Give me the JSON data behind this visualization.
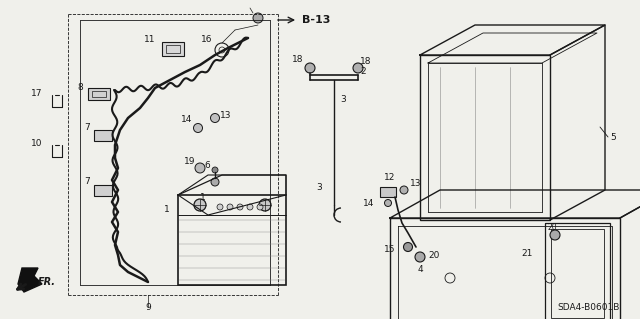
{
  "bg_color": "#f0f0eb",
  "line_color": "#1a1a1a",
  "title_text": "SDA4-B0601B",
  "b13_label": "B-13",
  "fr_label": "FR.",
  "font_size_label": 6.5,
  "font_size_title": 6.5,
  "font_size_b13": 8
}
